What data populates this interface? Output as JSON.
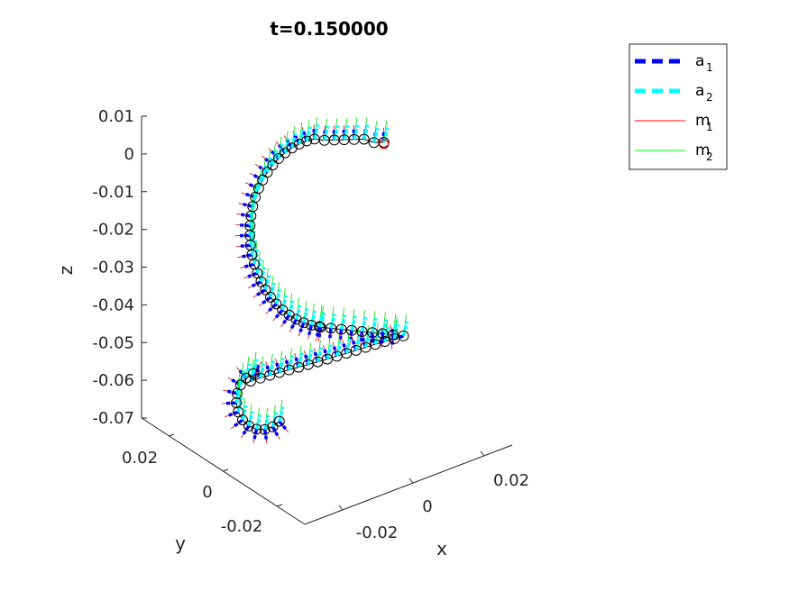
{
  "chart_data": {
    "type": "line",
    "title": "t=0.150000",
    "xlabel": "x",
    "ylabel": "y",
    "zlabel": "z",
    "x_ticks": [
      "-0.02",
      "0",
      "0.02"
    ],
    "y_ticks": [
      "0.02",
      "0",
      "-0.02"
    ],
    "z_ticks": [
      "0.01",
      "0",
      "-0.01",
      "-0.02",
      "-0.03",
      "-0.04",
      "-0.05",
      "-0.06",
      "-0.07"
    ],
    "zlim": [
      -0.07,
      0.01
    ],
    "grid": false,
    "legend_position": "top-right",
    "legend": [
      {
        "base": "a",
        "sub": "1",
        "color": "#0000ff",
        "style": "dashed-thick"
      },
      {
        "base": "a",
        "sub": "2",
        "color": "#00ffff",
        "style": "dashed-thick"
      },
      {
        "base": "m",
        "sub": "1",
        "color": "#ff0000",
        "style": "solid-thin"
      },
      {
        "base": "m",
        "sub": "2",
        "color": "#00ff00",
        "style": "solid-thin"
      }
    ],
    "series": [
      {
        "name": "a1",
        "color": "#0000ff"
      },
      {
        "name": "a2",
        "color": "#00ffff"
      },
      {
        "name": "m1",
        "color": "#cc0000"
      },
      {
        "name": "m2",
        "color": "#00dd00"
      },
      {
        "name": "centerline",
        "color": "#000000"
      }
    ]
  }
}
